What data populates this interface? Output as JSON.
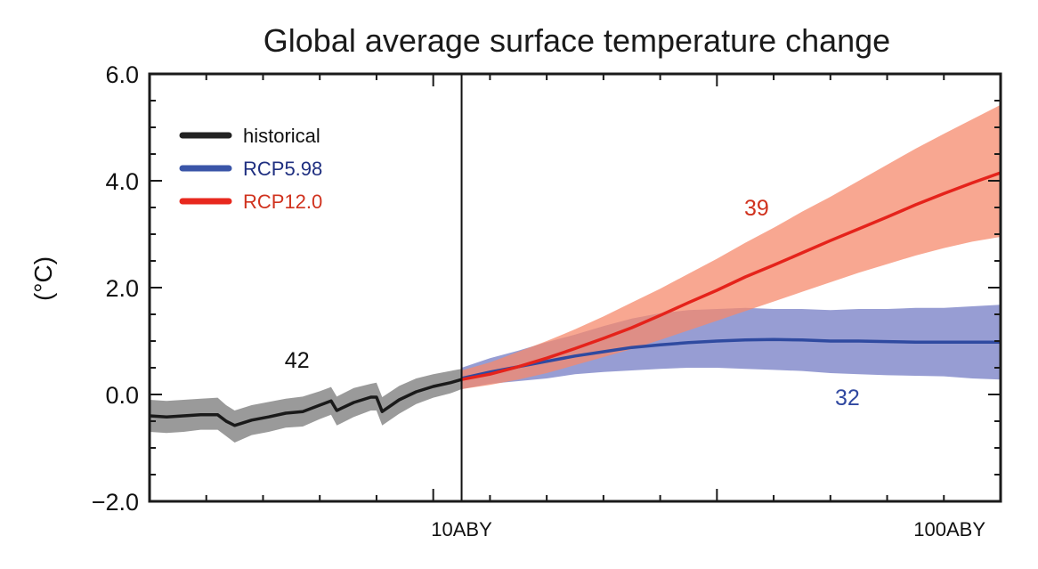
{
  "chart_data": {
    "type": "line",
    "title": "Global average surface temperature change",
    "xlabel": "",
    "ylabel": "(°C)",
    "xlim": [
      0,
      150
    ],
    "ylim": [
      -2.0,
      6.0
    ],
    "y_ticks": [
      -2.0,
      0.0,
      2.0,
      4.0,
      6.0
    ],
    "y_tick_labels": [
      "−2.0",
      "0.0",
      "2.0",
      "4.0",
      "6.0"
    ],
    "y_minor_step": 0.5,
    "x_major_ticks": [
      50,
      100,
      150
    ],
    "x_minor_step": 10,
    "x_tick_labels": [
      {
        "x": 55,
        "label": "10ABY"
      },
      {
        "x": 141,
        "label": "100ABY"
      }
    ],
    "divider_x": 55,
    "grid": false,
    "legend": {
      "placement": "top-left",
      "entries": [
        {
          "label": "historical",
          "color": "#222222",
          "text_color": "#111111"
        },
        {
          "label": "RCP5.98",
          "color": "#3a55a8",
          "text_color": "#1f2f80"
        },
        {
          "label": "RCP12.0",
          "color": "#e8281e",
          "text_color": "#d0321e"
        }
      ]
    },
    "series": [
      {
        "name": "historical",
        "color": "#1a1a1a",
        "band_color": "#9a9a9a",
        "band_opacity": 1.0,
        "x": [
          0,
          3,
          6,
          9,
          12,
          13.5,
          15,
          18,
          21,
          24,
          27,
          30,
          32,
          33,
          36,
          39,
          40,
          41,
          44,
          47,
          50,
          53,
          55
        ],
        "y": [
          -0.4,
          -0.42,
          -0.4,
          -0.38,
          -0.38,
          -0.5,
          -0.58,
          -0.48,
          -0.42,
          -0.35,
          -0.32,
          -0.2,
          -0.12,
          -0.3,
          -0.15,
          -0.05,
          -0.05,
          -0.32,
          -0.1,
          0.05,
          0.15,
          0.22,
          0.28
        ],
        "lower": [
          -0.7,
          -0.72,
          -0.7,
          -0.66,
          -0.66,
          -0.78,
          -0.9,
          -0.76,
          -0.7,
          -0.62,
          -0.6,
          -0.46,
          -0.38,
          -0.58,
          -0.42,
          -0.3,
          -0.3,
          -0.58,
          -0.36,
          -0.18,
          -0.06,
          0.02,
          0.1
        ],
        "upper": [
          -0.1,
          -0.12,
          -0.1,
          -0.08,
          -0.06,
          -0.2,
          -0.3,
          -0.2,
          -0.14,
          -0.08,
          -0.04,
          0.06,
          0.14,
          -0.04,
          0.12,
          0.2,
          0.22,
          -0.05,
          0.16,
          0.3,
          0.38,
          0.44,
          0.48
        ]
      },
      {
        "name": "RCP5.98",
        "color": "#2f4aa0",
        "band_color": "#7d85c8",
        "band_opacity": 0.8,
        "x": [
          55,
          60,
          65,
          70,
          75,
          80,
          85,
          90,
          95,
          100,
          105,
          110,
          115,
          120,
          125,
          130,
          135,
          140,
          145,
          150
        ],
        "y": [
          0.3,
          0.42,
          0.52,
          0.62,
          0.72,
          0.8,
          0.88,
          0.93,
          0.97,
          1.0,
          1.02,
          1.03,
          1.02,
          1.0,
          1.0,
          0.99,
          0.98,
          0.98,
          0.98,
          0.98
        ],
        "lower": [
          0.1,
          0.2,
          0.25,
          0.3,
          0.38,
          0.42,
          0.45,
          0.48,
          0.5,
          0.5,
          0.48,
          0.46,
          0.44,
          0.4,
          0.38,
          0.36,
          0.35,
          0.34,
          0.3,
          0.28
        ],
        "upper": [
          0.5,
          0.68,
          0.82,
          0.98,
          1.12,
          1.28,
          1.42,
          1.52,
          1.58,
          1.6,
          1.62,
          1.6,
          1.6,
          1.58,
          1.6,
          1.6,
          1.62,
          1.62,
          1.65,
          1.68
        ]
      },
      {
        "name": "RCP12.0",
        "color": "#e5231b",
        "band_color": "#f58a6c",
        "band_opacity": 0.75,
        "x": [
          55,
          60,
          65,
          70,
          75,
          80,
          85,
          90,
          95,
          100,
          105,
          110,
          115,
          120,
          125,
          130,
          135,
          140,
          145,
          150
        ],
        "y": [
          0.28,
          0.38,
          0.52,
          0.68,
          0.86,
          1.05,
          1.25,
          1.48,
          1.72,
          1.95,
          2.2,
          2.42,
          2.65,
          2.88,
          3.1,
          3.32,
          3.55,
          3.76,
          3.96,
          4.15
        ],
        "lower": [
          0.1,
          0.18,
          0.28,
          0.4,
          0.55,
          0.7,
          0.85,
          1.02,
          1.2,
          1.38,
          1.56,
          1.74,
          1.92,
          2.1,
          2.28,
          2.44,
          2.6,
          2.74,
          2.86,
          2.95
        ],
        "upper": [
          0.45,
          0.6,
          0.8,
          1.0,
          1.22,
          1.46,
          1.72,
          1.98,
          2.26,
          2.54,
          2.84,
          3.12,
          3.42,
          3.7,
          4.0,
          4.3,
          4.6,
          4.88,
          5.15,
          5.42
        ]
      }
    ],
    "annotations": [
      {
        "text": "42",
        "x": 26,
        "y": 0.5,
        "color": "#111111"
      },
      {
        "text": "39",
        "x": 107,
        "y": 3.35,
        "color": "#d0321e"
      },
      {
        "text": "32",
        "x": 123,
        "y": -0.2,
        "color": "#3048a0"
      }
    ]
  }
}
